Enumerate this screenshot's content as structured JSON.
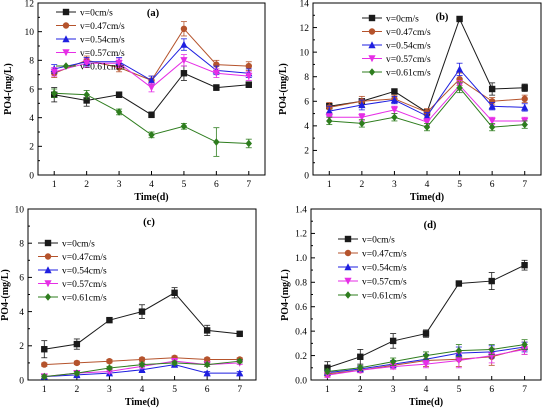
{
  "series_styles": [
    {
      "color": "#1a1a1a",
      "marker": "square"
    },
    {
      "color": "#b5532c",
      "marker": "circle"
    },
    {
      "color": "#1f1fe0",
      "marker": "triangle"
    },
    {
      "color": "#e62ee6",
      "marker": "triangle-down"
    },
    {
      "color": "#2e7d1e",
      "marker": "diamond"
    }
  ],
  "chart_data": [
    {
      "type": "line",
      "label": "(a)",
      "xlabel": "Time(d)",
      "ylabel": "PO4-(mg/L)",
      "x": [
        1,
        2,
        3,
        4,
        5,
        6,
        7
      ],
      "xlim": [
        0.5,
        7.5
      ],
      "ylim": [
        0,
        12
      ],
      "yticks": [
        0,
        2,
        4,
        6,
        8,
        10,
        12
      ],
      "legend_position": "top-left",
      "series": [
        {
          "name": "v=0cm/s",
          "values": [
            5.6,
            5.2,
            5.6,
            4.2,
            7.1,
            6.1,
            6.3
          ],
          "errors": [
            0.5,
            0.4,
            0.2,
            0.2,
            0.5,
            0.2,
            0.2
          ]
        },
        {
          "name": "v=0.47cm/s",
          "values": [
            7.1,
            8.0,
            7.5,
            6.6,
            10.2,
            7.7,
            7.6
          ],
          "errors": [
            0.3,
            0.3,
            0.3,
            0.3,
            0.5,
            0.3,
            0.3
          ]
        },
        {
          "name": "v=0.54cm/s",
          "values": [
            7.4,
            7.9,
            7.9,
            6.6,
            9.1,
            7.3,
            7.1
          ],
          "errors": [
            0.3,
            0.3,
            0.3,
            0.3,
            0.4,
            0.3,
            0.3
          ]
        },
        {
          "name": "v=0.57cm/s",
          "values": [
            7.2,
            7.8,
            7.8,
            6.1,
            8.0,
            7.1,
            6.9
          ],
          "errors": [
            0.3,
            0.3,
            0.3,
            0.3,
            0.4,
            0.3,
            0.3
          ]
        },
        {
          "name": "v=0.61cm/s",
          "values": [
            5.7,
            5.6,
            4.4,
            2.8,
            3.4,
            2.3,
            2.2
          ],
          "errors": [
            0.3,
            0.3,
            0.2,
            0.2,
            0.2,
            1.0,
            0.3
          ]
        }
      ]
    },
    {
      "type": "line",
      "label": "(b)",
      "xlabel": "Time(d)",
      "ylabel": "PO4-(mg/L)",
      "x": [
        1,
        2,
        3,
        4,
        5,
        6,
        7
      ],
      "xlim": [
        0.5,
        7.5
      ],
      "ylim": [
        0,
        14
      ],
      "yticks": [
        0,
        2,
        4,
        6,
        8,
        10,
        12,
        14
      ],
      "legend_position": "top-center",
      "series": [
        {
          "name": "v=0cm/s",
          "values": [
            5.6,
            6.0,
            6.8,
            5.1,
            12.7,
            7.0,
            7.1
          ],
          "errors": [
            0.2,
            0.2,
            0.2,
            0.2,
            0.2,
            0.5,
            0.3
          ]
        },
        {
          "name": "v=0.47cm/s",
          "values": [
            5.5,
            6.0,
            6.2,
            5.1,
            7.8,
            6.0,
            6.2
          ],
          "errors": [
            0.4,
            0.4,
            0.3,
            0.3,
            0.5,
            0.3,
            0.3
          ]
        },
        {
          "name": "v=0.54cm/s",
          "values": [
            5.2,
            5.7,
            6.1,
            4.8,
            8.6,
            5.6,
            5.5
          ],
          "errors": [
            0.4,
            0.4,
            0.3,
            0.3,
            0.5,
            0.3,
            0.3
          ]
        },
        {
          "name": "v=0.57cm/s",
          "values": [
            4.7,
            4.7,
            5.3,
            4.3,
            7.3,
            4.4,
            4.4
          ],
          "errors": [
            0.3,
            0.3,
            0.3,
            0.3,
            0.4,
            0.3,
            0.3
          ]
        },
        {
          "name": "v=0.61cm/s",
          "values": [
            4.4,
            4.2,
            4.7,
            3.9,
            7.1,
            3.9,
            4.1
          ],
          "errors": [
            0.3,
            0.3,
            0.3,
            0.3,
            0.4,
            0.3,
            0.3
          ]
        }
      ]
    },
    {
      "type": "line",
      "label": "(c)",
      "xlabel": "Time(d)",
      "ylabel": "PO4-(mg/L)",
      "x": [
        1,
        2,
        3,
        4,
        5,
        6,
        7
      ],
      "xlim": [
        0.5,
        7.5
      ],
      "ylim": [
        0,
        10
      ],
      "yticks": [
        0,
        2,
        4,
        6,
        8,
        10
      ],
      "legend_position": "left",
      "series": [
        {
          "name": "v=0cm/s",
          "values": [
            1.8,
            2.1,
            3.5,
            4.0,
            5.1,
            2.9,
            2.7
          ],
          "errors": [
            0.5,
            0.3,
            0.1,
            0.4,
            0.3,
            0.3,
            0.1
          ]
        },
        {
          "name": "v=0.47cm/s",
          "values": [
            0.9,
            1.0,
            1.1,
            1.2,
            1.3,
            1.2,
            1.2
          ],
          "errors": [
            0.1,
            0.1,
            0.1,
            0.1,
            0.1,
            0.1,
            0.1
          ]
        },
        {
          "name": "v=0.54cm/s",
          "values": [
            0.2,
            0.3,
            0.4,
            0.6,
            0.9,
            0.4,
            0.4
          ],
          "errors": [
            0.1,
            0.1,
            0.1,
            0.1,
            0.1,
            0.1,
            0.1
          ]
        },
        {
          "name": "v=0.57cm/s",
          "values": [
            0.2,
            0.4,
            0.5,
            0.8,
            1.1,
            0.9,
            1.0
          ],
          "errors": [
            0.1,
            0.1,
            0.1,
            0.1,
            0.1,
            0.1,
            0.1
          ]
        },
        {
          "name": "v=0.61cm/s",
          "values": [
            0.2,
            0.4,
            0.7,
            0.9,
            1.0,
            0.9,
            1.1
          ],
          "errors": [
            0.1,
            0.1,
            0.1,
            0.1,
            0.1,
            0.1,
            0.1
          ]
        }
      ]
    },
    {
      "type": "line",
      "label": "(d)",
      "xlabel": "Time(d)",
      "ylabel": "PO4-(mg/L)",
      "x": [
        1,
        2,
        3,
        4,
        5,
        6,
        7
      ],
      "xlim": [
        0.5,
        7.5
      ],
      "ylim": [
        0,
        1.4
      ],
      "yticks": [
        0.0,
        0.2,
        0.4,
        0.6,
        0.8,
        1.0,
        1.2,
        1.4
      ],
      "legend_position": "top-left",
      "series": [
        {
          "name": "v=0cm/s",
          "values": [
            0.1,
            0.19,
            0.32,
            0.38,
            0.79,
            0.81,
            0.94
          ],
          "errors": [
            0.05,
            0.06,
            0.06,
            0.03,
            0.01,
            0.07,
            0.04
          ]
        },
        {
          "name": "v=0.47cm/s",
          "values": [
            0.05,
            0.08,
            0.12,
            0.16,
            0.17,
            0.19,
            0.26
          ],
          "errors": [
            0.02,
            0.02,
            0.03,
            0.05,
            0.06,
            0.07,
            0.05
          ]
        },
        {
          "name": "v=0.54cm/s",
          "values": [
            0.06,
            0.09,
            0.13,
            0.17,
            0.22,
            0.23,
            0.27
          ],
          "errors": [
            0.02,
            0.02,
            0.03,
            0.04,
            0.05,
            0.05,
            0.04
          ]
        },
        {
          "name": "v=0.57cm/s",
          "values": [
            0.04,
            0.08,
            0.11,
            0.13,
            0.16,
            0.2,
            0.25
          ],
          "errors": [
            0.02,
            0.02,
            0.02,
            0.03,
            0.06,
            0.06,
            0.04
          ]
        },
        {
          "name": "v=0.61cm/s",
          "values": [
            0.07,
            0.1,
            0.15,
            0.2,
            0.24,
            0.25,
            0.29
          ],
          "errors": [
            0.02,
            0.02,
            0.03,
            0.03,
            0.05,
            0.04,
            0.04
          ]
        }
      ]
    }
  ]
}
